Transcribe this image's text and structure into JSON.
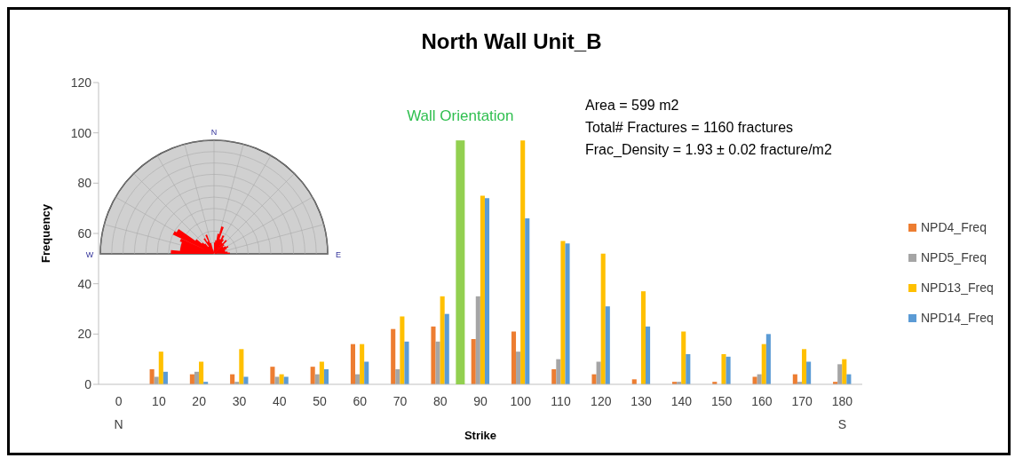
{
  "chart_data": {
    "type": "bar",
    "title": "North Wall Unit_B",
    "xlabel": "Strike",
    "ylabel": "Frequency",
    "x": [
      0,
      10,
      20,
      30,
      40,
      50,
      60,
      70,
      80,
      90,
      100,
      110,
      120,
      130,
      140,
      150,
      160,
      170,
      180
    ],
    "xlim": [
      -5,
      185
    ],
    "xticks": [
      0,
      10,
      20,
      30,
      40,
      50,
      60,
      70,
      80,
      90,
      100,
      110,
      120,
      130,
      140,
      150,
      160,
      170,
      180
    ],
    "ylim": [
      0,
      120
    ],
    "yticks": [
      0,
      20,
      40,
      60,
      80,
      100,
      120
    ],
    "series": [
      {
        "name": "NPD4_Freq",
        "color": "#ed7d31",
        "values": [
          0,
          6,
          4,
          4,
          7,
          7,
          16,
          22,
          23,
          18,
          21,
          6,
          4,
          2,
          1,
          1,
          3,
          4,
          1
        ]
      },
      {
        "name": "NPD5_Freq",
        "color": "#a5a5a5",
        "values": [
          0,
          3,
          5,
          1,
          3,
          4,
          4,
          6,
          17,
          35,
          13,
          10,
          9,
          0,
          1,
          0,
          4,
          1,
          8
        ]
      },
      {
        "name": "NPD13_Freq",
        "color": "#ffc000",
        "values": [
          0,
          13,
          9,
          14,
          4,
          9,
          16,
          27,
          35,
          75,
          97,
          57,
          52,
          37,
          21,
          12,
          16,
          14,
          10
        ]
      },
      {
        "name": "NPD14_Freq",
        "color": "#5b9bd5",
        "values": [
          0,
          5,
          1,
          3,
          3,
          6,
          9,
          17,
          28,
          74,
          66,
          56,
          31,
          23,
          12,
          11,
          20,
          9,
          4
        ]
      },
      {
        "name": "Wall Orientation",
        "type": "bar",
        "color": "#92d050",
        "x": [
          85
        ],
        "values": [
          97
        ]
      }
    ],
    "annotations": [
      "Area = 599 m2",
      "Total# Fractures = 1160 fractures",
      "Frac_Density = 1.93 ± 0.02 fracture/m2",
      "N",
      "S",
      "N",
      "W",
      "E"
    ],
    "legend": "right"
  }
}
